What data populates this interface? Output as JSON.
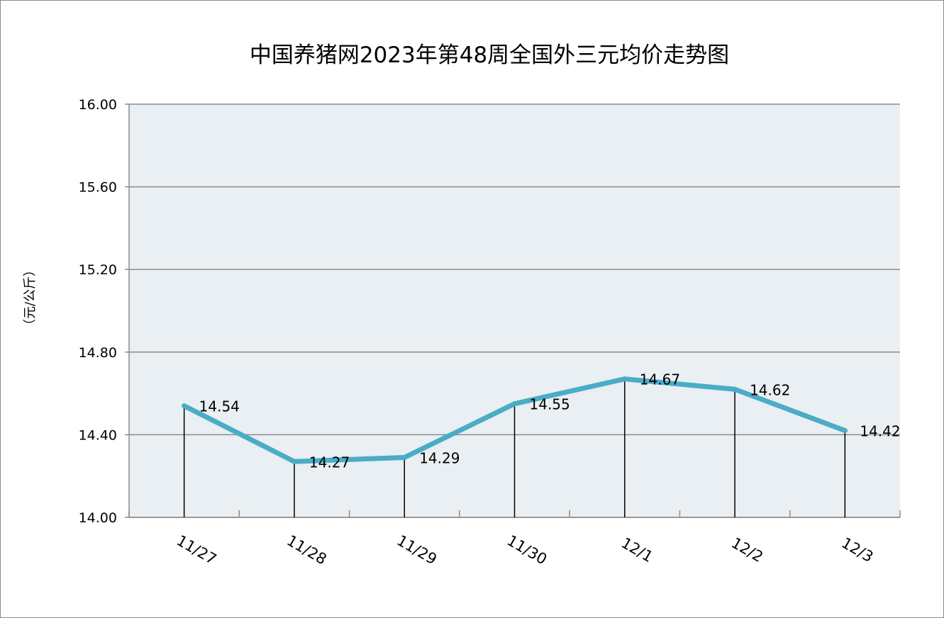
{
  "chart_data": {
    "type": "line",
    "title": "中国养猪网2023年第48周全国外三元均价走势图",
    "ylabel": "（元/公斤）",
    "xlabel": "",
    "categories": [
      "11/27",
      "11/28",
      "11/29",
      "11/30",
      "12/1",
      "12/2",
      "12/3"
    ],
    "series": [
      {
        "values": [
          14.54,
          14.27,
          14.29,
          14.55,
          14.67,
          14.62,
          14.42
        ],
        "color": "#4bacc6"
      }
    ],
    "data_labels": [
      "14.54",
      "14.27",
      "14.29",
      "14.55",
      "14.67",
      "14.62",
      "14.42"
    ],
    "ylim": [
      14.0,
      16.0
    ],
    "yticks": [
      "14.00",
      "14.40",
      "14.80",
      "15.20",
      "15.60",
      "16.00"
    ],
    "grid": true,
    "drop_lines": true,
    "legend": "none",
    "plot_background": "#e9eff2",
    "gridline_color": "#8c8c8c"
  }
}
